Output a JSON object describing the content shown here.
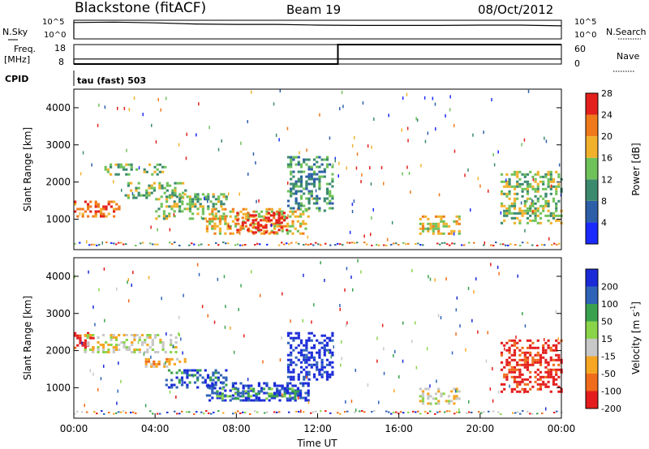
{
  "header": {
    "site": "Blackstone (fitACF)",
    "beam": "Beam 19",
    "date": "08/Oct/2012"
  },
  "chart_data": [
    {
      "type": "line",
      "panel": "noise",
      "left_label": "N.Sky",
      "right_label": "N.Search",
      "left_ticks": [
        "10^5",
        "10^0"
      ],
      "right_ticks": [
        "10^5",
        "10^0"
      ],
      "x": [
        "00:00",
        "02:00",
        "04:00",
        "06:00",
        "08:00",
        "10:00",
        "12:00",
        "14:00",
        "16:00",
        "18:00",
        "20:00",
        "22:00",
        "24:00"
      ],
      "values": [
        4.4,
        4.5,
        4.3,
        4.0,
        3.9,
        3.9,
        3.7,
        3.6,
        3.6,
        3.6,
        3.7,
        3.7,
        3.5
      ]
    },
    {
      "type": "line",
      "panel": "frequency",
      "left_label_top": "Freq.",
      "left_label_bottom": "[MHz]",
      "right_label": "Nave",
      "left_ticks": [
        "18",
        "8"
      ],
      "right_ticks": [
        "60",
        "0"
      ],
      "series": [
        {
          "name": "Freq.",
          "points": [
            [
              0,
              10.6
            ],
            [
              24,
              10.6
            ]
          ]
        },
        {
          "name": "Nave",
          "points": [
            [
              0,
              0
            ],
            [
              13,
              0
            ],
            [
              13,
              60
            ],
            [
              24,
              60
            ]
          ]
        }
      ]
    },
    {
      "type": "heatmap",
      "panel": "power",
      "cpid_label": "CPID",
      "cpid_text": "tau (fast) 503",
      "ylabel": "Slant Range [km]",
      "ylim": [
        180,
        4500
      ],
      "yticks": [
        "1000",
        "2000",
        "3000",
        "4000"
      ],
      "xlim": [
        0,
        24
      ],
      "colorbar_label": "Power [dB]",
      "colorbar_ticks": [
        "4",
        "8",
        "12",
        "16",
        "20",
        "24",
        "28"
      ],
      "colorbar_colors": [
        "#1a2aff",
        "#2d5fa8",
        "#3b8a6e",
        "#6fc25a",
        "#f2b12b",
        "#f07a1b",
        "#e4201c"
      ],
      "regions": [
        {
          "t0": 0,
          "t1": 2.3,
          "r0": 1050,
          "r1": 1500,
          "level": 5
        },
        {
          "t0": 1.5,
          "t1": 4.5,
          "r0": 2200,
          "r1": 2500,
          "level": 3
        },
        {
          "t0": 2.5,
          "t1": 5.5,
          "r0": 1600,
          "r1": 2000,
          "level": 3
        },
        {
          "t0": 4.0,
          "t1": 7.5,
          "r0": 1000,
          "r1": 1700,
          "level": 3
        },
        {
          "t0": 6.5,
          "t1": 11.5,
          "r0": 600,
          "r1": 1300,
          "level": 4
        },
        {
          "t0": 8.0,
          "t1": 10.5,
          "r0": 650,
          "r1": 1200,
          "level": 6
        },
        {
          "t0": 10.5,
          "t1": 12.8,
          "r0": 1200,
          "r1": 2700,
          "level": 2
        },
        {
          "t0": 17.0,
          "t1": 19.0,
          "r0": 600,
          "r1": 1100,
          "level": 4
        },
        {
          "t0": 21.0,
          "t1": 24.0,
          "r0": 900,
          "r1": 2300,
          "level": 3
        }
      ]
    },
    {
      "type": "heatmap",
      "panel": "velocity",
      "ylabel": "Slant Range [km]",
      "xlabel": "Time UT",
      "ylim": [
        180,
        4500
      ],
      "yticks": [
        "1000",
        "2000",
        "3000",
        "4000"
      ],
      "xticks": [
        "00:00",
        "04:00",
        "08:00",
        "12:00",
        "16:00",
        "20:00",
        "00:00"
      ],
      "xlim": [
        0,
        24
      ],
      "colorbar_label": "Velocity [m s",
      "colorbar_label_sup": "-1",
      "colorbar_label_end": "]",
      "colorbar_ticks": [
        "200",
        "100",
        "50",
        "15",
        "-15",
        "-50",
        "-100",
        "-200"
      ],
      "colorbar_colors": [
        "#1a2ad8",
        "#2f63b8",
        "#3aa24e",
        "#8ad44a",
        "#c8c8c8",
        "#f6a623",
        "#f06b1a",
        "#e41d1c"
      ],
      "regions": [
        {
          "t0": 0,
          "t1": 1.0,
          "r0": 2100,
          "r1": 2500,
          "level": 7
        },
        {
          "t0": 0.5,
          "t1": 5.0,
          "r0": 1950,
          "r1": 2450,
          "level": 4
        },
        {
          "t0": 3.5,
          "t1": 5.5,
          "r0": 1550,
          "r1": 1800,
          "level": 5
        },
        {
          "t0": 4.5,
          "t1": 7.5,
          "r0": 1000,
          "r1": 1500,
          "level": 1
        },
        {
          "t0": 6.5,
          "t1": 11.5,
          "r0": 650,
          "r1": 1150,
          "level": 0
        },
        {
          "t0": 7.0,
          "t1": 11.0,
          "r0": 700,
          "r1": 1000,
          "level": 2
        },
        {
          "t0": 10.5,
          "t1": 12.8,
          "r0": 1200,
          "r1": 2500,
          "level": 0
        },
        {
          "t0": 17.0,
          "t1": 19.0,
          "r0": 600,
          "r1": 1000,
          "level": 4
        },
        {
          "t0": 21.0,
          "t1": 24.0,
          "r0": 900,
          "r1": 2300,
          "level": 7
        }
      ]
    }
  ]
}
